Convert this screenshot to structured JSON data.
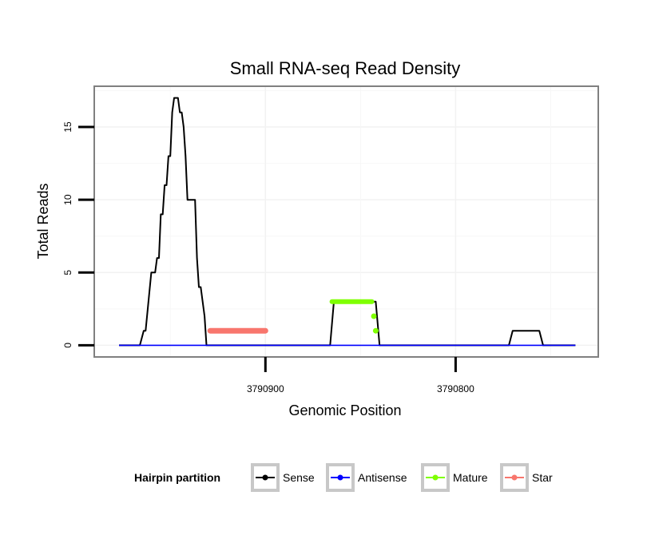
{
  "chart_data": {
    "type": "line",
    "title": "Small RNA-seq Read Density",
    "xlabel": "Genomic Position",
    "ylabel": "Total Reads",
    "x_reversed": true,
    "xlim": [
      3790990,
      3790725
    ],
    "ylim": [
      -0.8,
      17.8
    ],
    "x_ticks": [
      3790900,
      3790800
    ],
    "x_tick_labels": [
      "3790900",
      "3790800"
    ],
    "y_ticks": [
      0,
      5,
      10,
      15
    ],
    "y_tick_labels": [
      "0",
      "5",
      "10",
      "15"
    ],
    "grid": true,
    "legend": {
      "title": "Hairpin partition",
      "position": "bottom",
      "entries": [
        "Sense",
        "Antisense",
        "Mature",
        "Star"
      ]
    },
    "series": [
      {
        "name": "Sense",
        "color": "#000000",
        "x": [
          3790977,
          3790966,
          3790964,
          3790963,
          3790960,
          3790958,
          3790957,
          3790956,
          3790955,
          3790954,
          3790953,
          3790952,
          3790951,
          3790950,
          3790949,
          3790948,
          3790947,
          3790946,
          3790945,
          3790944,
          3790943,
          3790942,
          3790941,
          3790940,
          3790938,
          3790937,
          3790936,
          3790935,
          3790934,
          3790932,
          3790931,
          3790930,
          3790929,
          3790928,
          3790926,
          3790900,
          3790866,
          3790864,
          3790842,
          3790840,
          3790772,
          3790770,
          3790756,
          3790754,
          3790737
        ],
        "y": [
          0,
          0,
          1,
          1,
          5,
          5,
          6,
          6,
          9,
          9,
          11,
          11,
          13,
          13,
          16,
          17,
          17,
          17,
          16,
          16,
          15,
          13,
          10,
          10,
          10,
          10,
          6,
          4,
          4,
          2,
          0,
          0,
          0,
          0,
          0,
          0,
          0,
          3,
          3,
          0,
          0,
          1,
          1,
          0,
          0
        ]
      },
      {
        "name": "Antisense",
        "color": "#0000ff",
        "x": [
          3790977,
          3790737
        ],
        "y": [
          0,
          0
        ]
      },
      {
        "name": "Mature",
        "color": "#7fff00",
        "x": [
          3790865,
          3790844
        ],
        "y": [
          3,
          3
        ],
        "points_x": [
          3790843,
          3790842
        ],
        "points_y": [
          2,
          1
        ]
      },
      {
        "name": "Star",
        "color": "#f8766d",
        "x": [
          3790929,
          3790900
        ],
        "y": [
          1,
          1
        ]
      }
    ]
  }
}
